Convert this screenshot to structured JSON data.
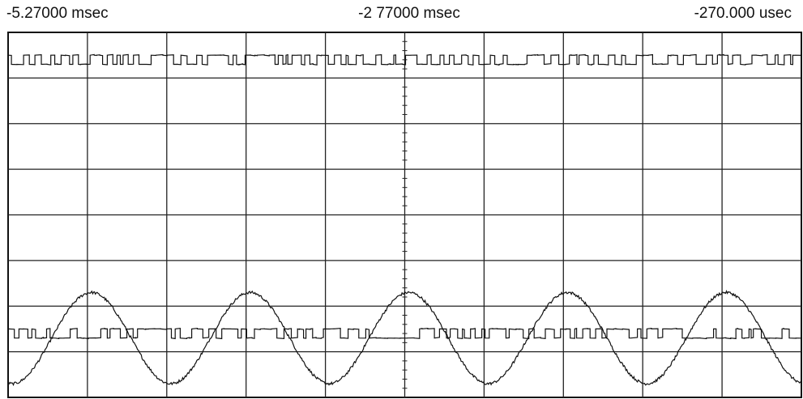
{
  "chart_data": {
    "type": "line",
    "title": "",
    "time_labels": {
      "left": "-5.27000 msec",
      "center": "-2 77000 msec",
      "right": "-270.000 usec"
    },
    "x_range_msec": [
      -5.27,
      -0.27
    ],
    "y_range_divisions": [
      -4,
      4
    ],
    "grid": {
      "columns": 10,
      "rows": 8,
      "visible": true
    },
    "series": [
      {
        "trace": "top digital trace",
        "level_high_div": 3.5,
        "level_low_div": 3.3
      },
      {
        "trace": "sine wave",
        "offset_div": -2.7,
        "amplitude_div": 1.0,
        "period_msec": 1.0,
        "cycles": 5
      },
      {
        "trace": "lower digital trace",
        "level_high_div": -2.5,
        "level_low_div": -2.7
      }
    ]
  }
}
